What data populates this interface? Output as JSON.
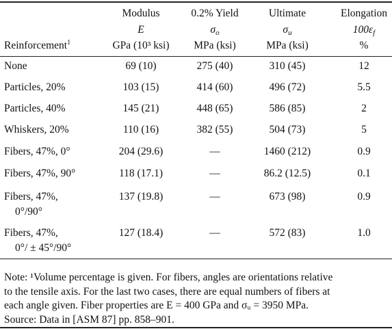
{
  "table": {
    "header": {
      "label": {
        "text": "Reinforcement",
        "sup": "1"
      },
      "columns": [
        {
          "title": "Modulus",
          "symbol": "E",
          "unit": "GPa (10³ ksi)"
        },
        {
          "title": "0.2% Yield",
          "symbol": "σ",
          "sub": "o",
          "unit": "MPa (ksi)"
        },
        {
          "title": "Ultimate",
          "symbol": "σ",
          "sub": "u",
          "unit": "MPa (ksi)"
        },
        {
          "title": "Elongation",
          "symbol": "100ε",
          "sub": "f",
          "unit": "%"
        }
      ]
    },
    "rows": [
      {
        "label": [
          "None"
        ],
        "cells": [
          "69 (10)",
          "275 (40)",
          "310 (45)",
          "12"
        ]
      },
      {
        "label": [
          "Particles, 20%"
        ],
        "cells": [
          "103 (15)",
          "414 (60)",
          "496 (72)",
          "5.5"
        ]
      },
      {
        "label": [
          "Particles, 40%"
        ],
        "cells": [
          "145 (21)",
          "448 (65)",
          "586 (85)",
          "2"
        ]
      },
      {
        "label": [
          "Whiskers, 20%"
        ],
        "cells": [
          "110 (16)",
          "382 (55)",
          "504 (73)",
          "5"
        ]
      },
      {
        "label": [
          "Fibers, 47%, 0°"
        ],
        "cells": [
          "204 (29.6)",
          "—",
          "1460 (212)",
          "0.9"
        ]
      },
      {
        "label": [
          "Fibers, 47%, 90°"
        ],
        "cells": [
          "118 (17.1)",
          "—",
          "86.2 (12.5)",
          "0.1"
        ]
      },
      {
        "label": [
          "Fibers, 47%,",
          "0°/90°"
        ],
        "cells": [
          "137 (19.8)",
          "—",
          "673 (98)",
          "0.9"
        ]
      },
      {
        "label": [
          "Fibers, 47%,",
          "0°/ ± 45°/90°"
        ],
        "cells": [
          "127 (18.4)",
          "—",
          "572 (83)",
          "1.0"
        ]
      }
    ]
  },
  "note": {
    "lines": [
      "Note: ¹Volume percentage is given. For fibers, angles are orientations relative",
      "to the tensile axis. For the last two cases, there are equal numbers of fibers at",
      "each angle given. Fiber properties are E = 400 GPa and σᵤ = 3950 MPa.",
      "Source: Data in [ASM 87] pp. 858–901."
    ]
  }
}
